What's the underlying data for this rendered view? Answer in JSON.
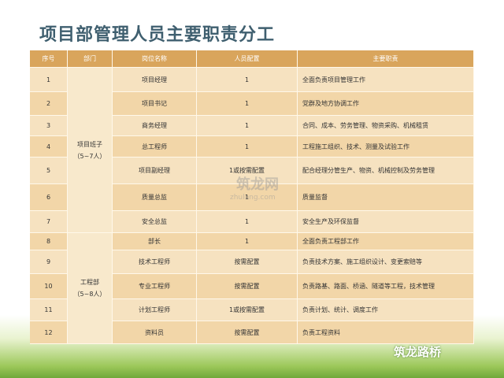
{
  "header": {
    "title": "项目部管理人员主要职责分工"
  },
  "table": {
    "columns": [
      "序号",
      "部门",
      "岗位名称",
      "人员配置",
      "主要职责"
    ],
    "departments": [
      {
        "name": "项目班子",
        "size": "（5~7人）"
      },
      {
        "name": "工程部",
        "size": "（5~8人）"
      }
    ],
    "rows": [
      [
        "1",
        "项目经理",
        "1",
        "全面负责项目管理工作"
      ],
      [
        "2",
        "项目书记",
        "1",
        "党群及地方协调工作"
      ],
      [
        "3",
        "商务经理",
        "1",
        "合同、成本、劳务管理、物资采购、机械租赁"
      ],
      [
        "4",
        "总工程师",
        "1",
        "工程施工组织、技术、测量及试验工作"
      ],
      [
        "5",
        "项目副经理",
        "1或按需配置",
        "配合经理分管生产、物资、机械控制及劳务管理"
      ],
      [
        "6",
        "质量总监",
        "1",
        "质量监督"
      ],
      [
        "7",
        "安全总监",
        "1",
        "安全生产及环保监督"
      ],
      [
        "8",
        "部长",
        "1",
        "全面负责工程部工作"
      ],
      [
        "9",
        "技术工程师",
        "按需配置",
        "负责技术方案、施工组织设计、变更索赔等"
      ],
      [
        "10",
        "专业工程师",
        "按需配置",
        "负责路基、路面、桥涵、隧道等工程，技术管理"
      ],
      [
        "11",
        "计划工程师",
        "1或按需配置",
        "负责计划、统计、调度工作"
      ],
      [
        "12",
        "资料员",
        "按需配置",
        "负责工程资料"
      ]
    ]
  },
  "watermark": {
    "name": "筑龙网",
    "url": "zhulong.com"
  },
  "logo": {
    "text": "筑龙路桥"
  }
}
